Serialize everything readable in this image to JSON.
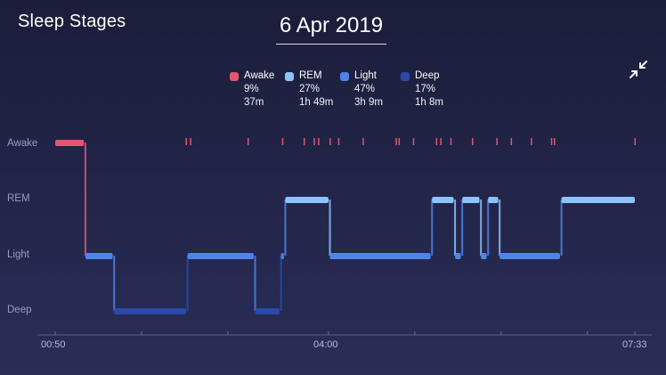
{
  "header": {
    "title": "Sleep Stages",
    "date": "6 Apr 2019",
    "collapse_icon": "collapse-arrows-icon"
  },
  "legend": [
    {
      "key": "awake",
      "label": "Awake",
      "percent": "9%",
      "duration": "37m",
      "color": "#e2566f"
    },
    {
      "key": "rem",
      "label": "REM",
      "percent": "27%",
      "duration": "1h 49m",
      "color": "#8dc3fb"
    },
    {
      "key": "light",
      "label": "Light",
      "percent": "47%",
      "duration": "3h 9m",
      "color": "#4f83ec"
    },
    {
      "key": "deep",
      "label": "Deep",
      "percent": "17%",
      "duration": "1h 8m",
      "color": "#2a4aaa"
    }
  ],
  "chart_data": {
    "type": "line",
    "categories": [
      "Awake",
      "REM",
      "Light",
      "Deep"
    ],
    "x_ticks": [
      "00:50",
      "04:00",
      "07:33"
    ],
    "x_range": [
      "00:50",
      "07:33"
    ],
    "colors": {
      "awake": "#e2566f",
      "rem": "#8dc3fb",
      "light": "#4f83ec",
      "deep": "#2a4aaa"
    },
    "segments": [
      {
        "stage": "Awake",
        "start": "00:50",
        "end": "01:10"
      },
      {
        "stage": "Light",
        "start": "01:11",
        "end": "01:30"
      },
      {
        "stage": "Deep",
        "start": "01:31",
        "end": "02:21"
      },
      {
        "stage": "Light",
        "start": "02:22",
        "end": "03:08"
      },
      {
        "stage": "Deep",
        "start": "03:09",
        "end": "03:26"
      },
      {
        "stage": "Light",
        "start": "03:27",
        "end": "03:29"
      },
      {
        "stage": "REM",
        "start": "03:30",
        "end": "04:00"
      },
      {
        "stage": "Light",
        "start": "04:01",
        "end": "05:11"
      },
      {
        "stage": "REM",
        "start": "05:12",
        "end": "05:27"
      },
      {
        "stage": "Light",
        "start": "05:28",
        "end": "05:32"
      },
      {
        "stage": "REM",
        "start": "05:33",
        "end": "05:45"
      },
      {
        "stage": "Light",
        "start": "05:46",
        "end": "05:50"
      },
      {
        "stage": "REM",
        "start": "05:51",
        "end": "05:58"
      },
      {
        "stage": "Light",
        "start": "05:59",
        "end": "06:41"
      },
      {
        "stage": "REM",
        "start": "06:42",
        "end": "07:33"
      }
    ],
    "awake_ticks": [
      "02:21",
      "02:24",
      "03:04",
      "03:28",
      "03:43",
      "03:50",
      "03:53",
      "04:01",
      "04:07",
      "04:24",
      "04:47",
      "04:49",
      "04:59",
      "05:15",
      "05:18",
      "05:25",
      "05:40",
      "05:57",
      "06:07",
      "06:21",
      "06:35",
      "06:37",
      "07:33"
    ]
  }
}
